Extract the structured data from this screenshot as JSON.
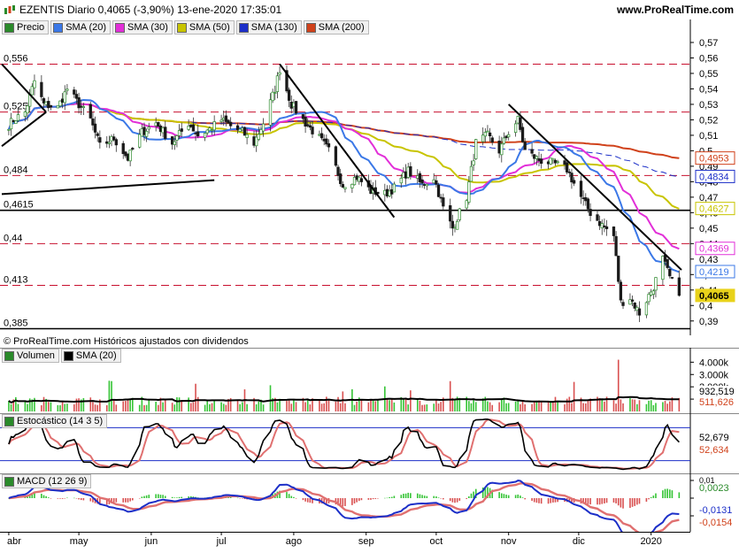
{
  "header": {
    "title": "EZENTIS Diario 0,4065 (-3,90%) 13-ene-2020 17:35:01",
    "site": "www.ProRealTime.com"
  },
  "price_legend": [
    {
      "label": "Precio",
      "color": "#2a8a2a"
    },
    {
      "label": "SMA (20)",
      "color": "#3b78e7"
    },
    {
      "label": "SMA (30)",
      "color": "#e22fd8"
    },
    {
      "label": "SMA (50)",
      "color": "#c8c400"
    },
    {
      "label": "SMA (130)",
      "color": "#1c2fc8"
    },
    {
      "label": "SMA (200)",
      "color": "#d0421b"
    }
  ],
  "copyright": "© ProRealTime.com  Históricos ajustados con dividendos",
  "volume_legend": [
    {
      "label": "Volumen",
      "color": "#2a8a2a"
    },
    {
      "label": "SMA (20)",
      "color": "#000000"
    }
  ],
  "stoch_legend": {
    "label": "Estocástico (14 3 5)",
    "color": "#2a8a2a"
  },
  "macd_legend": {
    "label": "MACD (12 26 9)",
    "color": "#2a8a2a"
  },
  "chart_data": {
    "type": "candlestick",
    "x_axis": [
      "abr",
      "may",
      "jun",
      "jul",
      "ago",
      "sep",
      "oct",
      "nov",
      "dic",
      "2020"
    ],
    "price_axis_ticks": [
      "0,57",
      "0,56",
      "0,55",
      "0,54",
      "0,53",
      "0,52",
      "0,51",
      "0,5",
      "0,49",
      "0,48",
      "0,47",
      "0,46",
      "0,45",
      "0,44",
      "0,43",
      "0,42",
      "0,41",
      "0,4",
      "0,39"
    ],
    "ylim": [
      0.383,
      0.578
    ],
    "horizontal_levels": [
      {
        "label": "0,556",
        "value": 0.556,
        "style": "dashed"
      },
      {
        "label": "0,525",
        "value": 0.525,
        "style": "dashed"
      },
      {
        "label": "0,484",
        "value": 0.484,
        "style": "dashed"
      },
      {
        "label": "0,4615",
        "value": 0.4615,
        "style": "solid"
      },
      {
        "label": "0,44",
        "value": 0.44,
        "style": "dashed"
      },
      {
        "label": "0,413",
        "value": 0.413,
        "style": "dashed"
      },
      {
        "label": "0,385",
        "value": 0.385,
        "style": "solid"
      }
    ],
    "trendlines": [
      {
        "points": [
          [
            "2019-03-29",
            0.503
          ],
          [
            "2019-04-17",
            0.525
          ]
        ]
      },
      {
        "points": [
          [
            "2019-03-29",
            0.556
          ],
          [
            "2019-04-17",
            0.525
          ]
        ]
      },
      {
        "points": [
          [
            "2019-03-29",
            0.472
          ],
          [
            "2019-06-28",
            0.481
          ]
        ]
      },
      {
        "points": [
          [
            "2019-07-26",
            0.556
          ],
          [
            "2019-09-13",
            0.457
          ]
        ]
      },
      {
        "points": [
          [
            "2019-11-01",
            0.53
          ],
          [
            "2020-01-14",
            0.423
          ]
        ]
      }
    ],
    "price_waypoints": [
      [
        "2019-03-29",
        0.512
      ],
      [
        "2019-04-03",
        0.52
      ],
      [
        "2019-04-08",
        0.525
      ],
      [
        "2019-04-12",
        0.545
      ],
      [
        "2019-04-16",
        0.53
      ],
      [
        "2019-04-22",
        0.528
      ],
      [
        "2019-04-26",
        0.54
      ],
      [
        "2019-04-30",
        0.532
      ],
      [
        "2019-05-06",
        0.52
      ],
      [
        "2019-05-10",
        0.503
      ],
      [
        "2019-05-16",
        0.508
      ],
      [
        "2019-05-22",
        0.495
      ],
      [
        "2019-05-28",
        0.512
      ],
      [
        "2019-06-03",
        0.518
      ],
      [
        "2019-06-10",
        0.505
      ],
      [
        "2019-06-17",
        0.518
      ],
      [
        "2019-06-21",
        0.51
      ],
      [
        "2019-06-26",
        0.514
      ],
      [
        "2019-07-01",
        0.52
      ],
      [
        "2019-07-05",
        0.516
      ],
      [
        "2019-07-10",
        0.512
      ],
      [
        "2019-07-15",
        0.505
      ],
      [
        "2019-07-19",
        0.518
      ],
      [
        "2019-07-24",
        0.54
      ],
      [
        "2019-07-26",
        0.553
      ],
      [
        "2019-07-31",
        0.53
      ],
      [
        "2019-08-06",
        0.518
      ],
      [
        "2019-08-12",
        0.508
      ],
      [
        "2019-08-16",
        0.5
      ],
      [
        "2019-08-22",
        0.478
      ],
      [
        "2019-08-28",
        0.483
      ],
      [
        "2019-09-03",
        0.474
      ],
      [
        "2019-09-09",
        0.472
      ],
      [
        "2019-09-13",
        0.476
      ],
      [
        "2019-09-19",
        0.487
      ],
      [
        "2019-09-25",
        0.478
      ],
      [
        "2019-09-30",
        0.483
      ],
      [
        "2019-10-04",
        0.463
      ],
      [
        "2019-10-08",
        0.45
      ],
      [
        "2019-10-14",
        0.47
      ],
      [
        "2019-10-18",
        0.505
      ],
      [
        "2019-10-23",
        0.51
      ],
      [
        "2019-10-28",
        0.5
      ],
      [
        "2019-11-01",
        0.512
      ],
      [
        "2019-11-05",
        0.52
      ],
      [
        "2019-11-08",
        0.5
      ],
      [
        "2019-11-14",
        0.494
      ],
      [
        "2019-11-20",
        0.492
      ],
      [
        "2019-11-26",
        0.488
      ],
      [
        "2019-12-02",
        0.47
      ],
      [
        "2019-12-06",
        0.46
      ],
      [
        "2019-12-11",
        0.452
      ],
      [
        "2019-12-16",
        0.445
      ],
      [
        "2019-12-19",
        0.402
      ],
      [
        "2019-12-23",
        0.405
      ],
      [
        "2019-12-27",
        0.395
      ],
      [
        "2020-01-02",
        0.412
      ],
      [
        "2020-01-06",
        0.43
      ],
      [
        "2020-01-09",
        0.418
      ],
      [
        "2020-01-13",
        0.4065
      ]
    ],
    "sma_readouts": [
      {
        "label": "0,4953",
        "series": "SMA (200)",
        "value": 0.4953,
        "color": "#d0421b"
      },
      {
        "label": "0,4834",
        "series": "SMA (130)",
        "value": 0.4834,
        "color": "#1c2fc8"
      },
      {
        "label": "0,4627",
        "series": "SMA (50)",
        "value": 0.4627,
        "color": "#c8c400"
      },
      {
        "label": "0,4369",
        "series": "SMA (30)",
        "value": 0.4369,
        "color": "#e22fd8"
      },
      {
        "label": "0,4219",
        "series": "SMA (20)",
        "value": 0.4219,
        "color": "#3b78e7"
      },
      {
        "label": "0,4065",
        "series": "Precio",
        "value": 0.4065,
        "color": "#e8d21a"
      }
    ],
    "volume": {
      "ticks": [
        "4.000k",
        "3.000k",
        "2.000k",
        "1.000k"
      ],
      "sma_readout": "932,519",
      "last_readout": "511,626",
      "ylim": [
        0,
        4600000
      ]
    },
    "stochastic": {
      "readout_k": "52,679",
      "readout_d": "52,634",
      "levels": [
        80,
        20
      ],
      "ylim": [
        0,
        100
      ]
    },
    "macd": {
      "readout_hist": "0,0023",
      "readout_macd": "-0,0131",
      "readout_signal": "-0,0154",
      "ticks": [
        "0,01",
        "0",
        "-0,01"
      ],
      "ylim": [
        -0.018,
        0.012
      ]
    }
  }
}
